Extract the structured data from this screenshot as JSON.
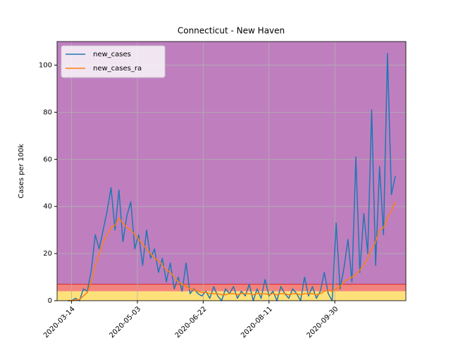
{
  "chart_data": {
    "type": "line",
    "title": "Connecticut - New Haven",
    "y_label": "Cases per 100k",
    "x": [
      "2020-03-11",
      "2020-03-14",
      "2020-03-17",
      "2020-03-20",
      "2020-03-23",
      "2020-03-26",
      "2020-03-29",
      "2020-04-01",
      "2020-04-04",
      "2020-04-07",
      "2020-04-10",
      "2020-04-13",
      "2020-04-16",
      "2020-04-19",
      "2020-04-22",
      "2020-04-25",
      "2020-04-28",
      "2020-05-01",
      "2020-05-04",
      "2020-05-07",
      "2020-05-10",
      "2020-05-13",
      "2020-05-16",
      "2020-05-19",
      "2020-05-22",
      "2020-05-25",
      "2020-05-28",
      "2020-05-31",
      "2020-06-03",
      "2020-06-06",
      "2020-06-09",
      "2020-06-12",
      "2020-06-15",
      "2020-06-18",
      "2020-06-21",
      "2020-06-24",
      "2020-06-27",
      "2020-06-30",
      "2020-07-03",
      "2020-07-06",
      "2020-07-09",
      "2020-07-12",
      "2020-07-15",
      "2020-07-18",
      "2020-07-21",
      "2020-07-24",
      "2020-07-27",
      "2020-07-30",
      "2020-08-02",
      "2020-08-05",
      "2020-08-08",
      "2020-08-11",
      "2020-08-14",
      "2020-08-17",
      "2020-08-20",
      "2020-08-23",
      "2020-08-26",
      "2020-08-29",
      "2020-09-01",
      "2020-09-04",
      "2020-09-07",
      "2020-09-10",
      "2020-09-13",
      "2020-09-16",
      "2020-09-19",
      "2020-09-22",
      "2020-09-25",
      "2020-09-28",
      "2020-10-01",
      "2020-10-04",
      "2020-10-07",
      "2020-10-10",
      "2020-10-13",
      "2020-10-16",
      "2020-10-19",
      "2020-10-22",
      "2020-10-25",
      "2020-10-28",
      "2020-10-31",
      "2020-11-03",
      "2020-11-06",
      "2020-11-09",
      "2020-11-12",
      "2020-11-15"
    ],
    "series": [
      {
        "name": "new_cases",
        "color": "#1f77b4",
        "values": [
          0,
          0,
          1,
          0,
          5,
          4,
          13,
          28,
          22,
          30,
          38,
          48,
          30,
          47,
          25,
          36,
          42,
          22,
          28,
          15,
          30,
          18,
          22,
          12,
          18,
          8,
          16,
          5,
          10,
          4,
          16,
          3,
          5,
          3,
          2,
          4,
          1,
          6,
          2,
          0,
          5,
          3,
          6,
          1,
          4,
          2,
          7,
          0,
          5,
          1,
          9,
          2,
          4,
          0,
          6,
          3,
          1,
          5,
          3,
          0,
          10,
          2,
          6,
          1,
          4,
          12,
          3,
          0,
          33,
          5,
          14,
          26,
          8,
          61,
          12,
          37,
          20,
          81,
          15,
          57,
          28,
          105,
          45,
          53
        ]
      },
      {
        "name": "new_cases_ra",
        "color": "#ff7f0e",
        "values": [
          0,
          0,
          0.3,
          0.5,
          2,
          3.5,
          8,
          15,
          20,
          25,
          28,
          31,
          32,
          35,
          33,
          31,
          30,
          28,
          26,
          24,
          22,
          20,
          18,
          17,
          15,
          13,
          12,
          10,
          8,
          7,
          6,
          5,
          4.5,
          4,
          3.5,
          3.5,
          3,
          3,
          3,
          2.5,
          2.5,
          3,
          3,
          2.5,
          3,
          3,
          3,
          2.5,
          3,
          3,
          3,
          2.5,
          3,
          2.5,
          3,
          3,
          2.5,
          3,
          3,
          2.5,
          3,
          3,
          3,
          2.5,
          3,
          4,
          4.5,
          4,
          5,
          6,
          8,
          9,
          10,
          11,
          13,
          15,
          18,
          22,
          25,
          30,
          31,
          35,
          38,
          42
        ]
      }
    ],
    "xlim": [
      "2020-03-03",
      "2020-11-23"
    ],
    "xticks": [
      "2020-03-14",
      "2020-05-03",
      "2020-06-22",
      "2020-08-11",
      "2020-09-30"
    ],
    "ylim": [
      0,
      110
    ],
    "yticks": [
      0,
      20,
      40,
      60,
      80,
      100
    ],
    "grid": true,
    "legend": "upper left",
    "bands": [
      {
        "from": 0,
        "to": 4,
        "color": "#ffe17a"
      },
      {
        "from": 4,
        "to": 7,
        "color": "#f3847d"
      },
      {
        "from": 7,
        "to": 110,
        "color": "#bf7fbf"
      }
    ],
    "threshold_line": {
      "value": 7,
      "color": "#d62728"
    }
  }
}
